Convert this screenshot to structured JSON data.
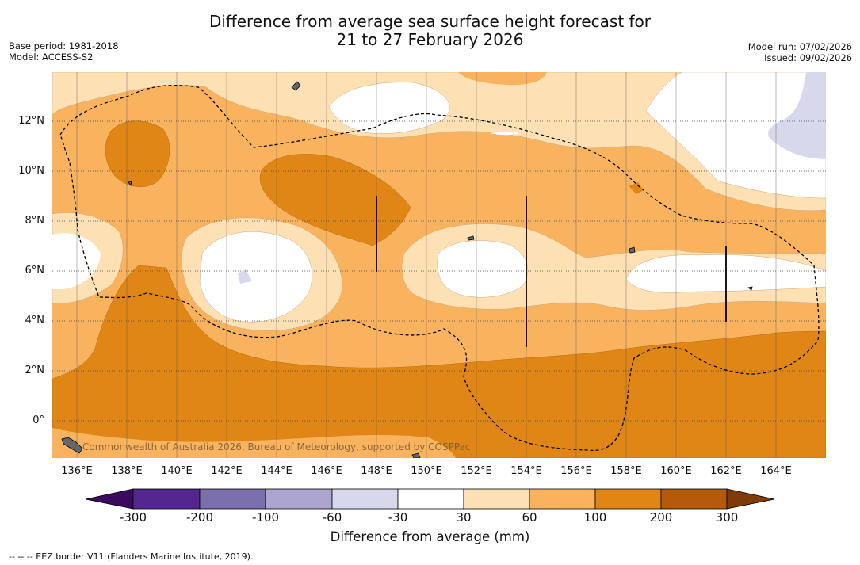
{
  "title": {
    "line1": "Difference from average sea surface height forecast for",
    "line2": "21 to 27 February 2026"
  },
  "meta_left": {
    "base_period": "Base period: 1981-2018",
    "model": "Model: ACCESS-S2"
  },
  "meta_right": {
    "model_run": "Model run: 07/02/2026",
    "issued": "Issued: 09/02/2026"
  },
  "map": {
    "lat_labels": [
      "12°N",
      "10°N",
      "8°N",
      "6°N",
      "4°N",
      "2°N",
      "0°"
    ],
    "lon_labels": [
      "136°E",
      "138°E",
      "140°E",
      "142°E",
      "144°E",
      "146°E",
      "148°E",
      "150°E",
      "152°E",
      "154°E",
      "156°E",
      "158°E",
      "160°E",
      "162°E",
      "164°E"
    ],
    "credit": "Commonwealth of Australia 2026, Bureau of Meteorology, supported by COSPPac"
  },
  "colorbar": {
    "labels": [
      "-300",
      "-200",
      "-100",
      "-60",
      "-30",
      "30",
      "60",
      "100",
      "200",
      "300"
    ],
    "bins": [
      {
        "range": "-300 to -200",
        "color": "#54278f"
      },
      {
        "range": "-200 to -100",
        "color": "#7b6fae"
      },
      {
        "range": "-100 to -60",
        "color": "#aba5d0"
      },
      {
        "range": "-60 to -30",
        "color": "#d8d8ec"
      },
      {
        "range": "-30 to 30",
        "color": "#ffffff"
      },
      {
        "range": "30 to 60",
        "color": "#fde0b3"
      },
      {
        "range": "60 to 100",
        "color": "#f9b35f"
      },
      {
        "range": "100 to 200",
        "color": "#e08617"
      },
      {
        "range": "200 to 300",
        "color": "#b35a0c"
      }
    ],
    "under_color": "#3a0a5e",
    "over_color": "#7f3b08",
    "title": "Difference from average (mm)"
  },
  "footer": "--  --  -- EEZ border V11 (Flanders Marine Institute, 2019)."
}
